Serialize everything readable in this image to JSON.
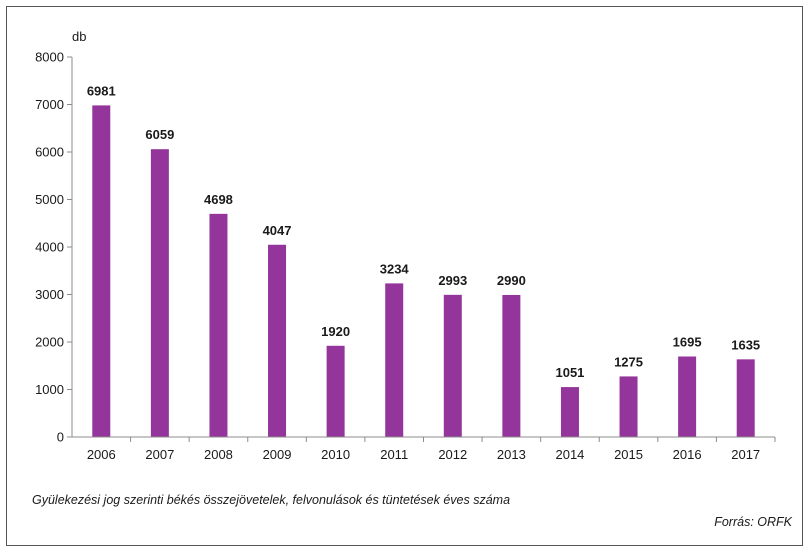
{
  "chart_data": {
    "type": "bar",
    "ylabel": "db",
    "categories": [
      "2006",
      "2007",
      "2008",
      "2009",
      "2010",
      "2011",
      "2012",
      "2013",
      "2014",
      "2015",
      "2016",
      "2017"
    ],
    "values": [
      6981,
      6059,
      4698,
      4047,
      1920,
      3234,
      2993,
      2990,
      1051,
      1275,
      1695,
      1635
    ],
    "ylim": [
      0,
      8000
    ],
    "yticks": [
      0,
      1000,
      2000,
      3000,
      4000,
      5000,
      6000,
      7000,
      8000
    ],
    "bar_color": "#93359A",
    "grid": false,
    "legend": "none"
  },
  "caption": "Gyülekezési jog szerinti békés összejövetelek, felvonulások és tüntetések éves száma",
  "source": "Forrás: ORFK"
}
